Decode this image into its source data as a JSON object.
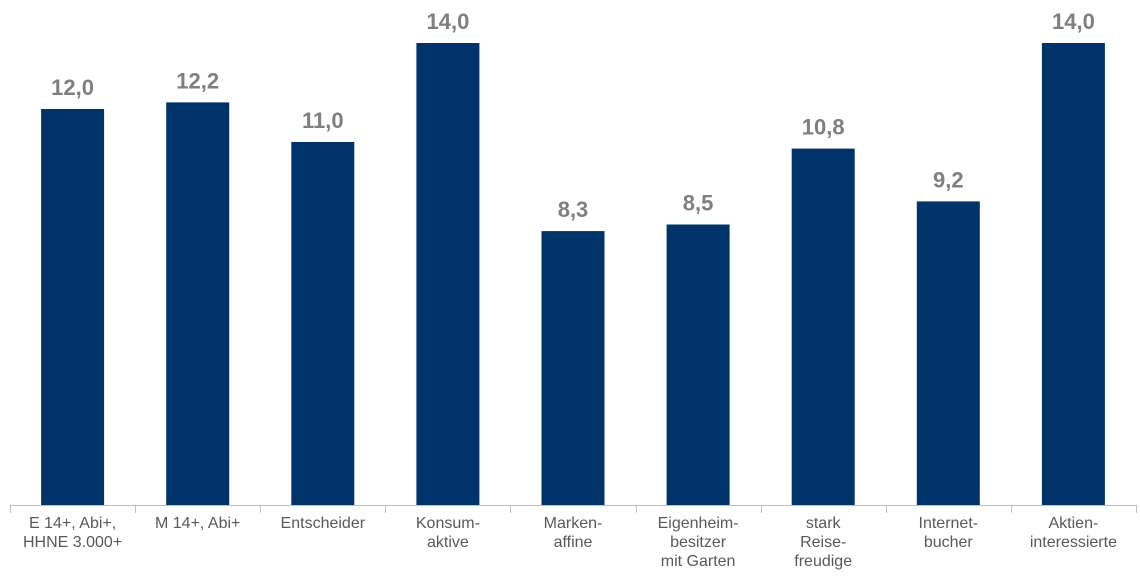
{
  "chart_data": {
    "type": "bar",
    "categories": [
      [
        "E 14+, Abi+,",
        "HHNE 3.000+"
      ],
      [
        "M 14+, Abi+"
      ],
      [
        "Entscheider"
      ],
      [
        "Konsum-",
        "aktive"
      ],
      [
        "Marken-",
        "affine"
      ],
      [
        "Eigenheim-",
        "besitzer",
        "mit Garten"
      ],
      [
        "stark",
        "Reise-",
        "freudige"
      ],
      [
        "Internet-",
        "bucher"
      ],
      [
        "Aktien-",
        "interessierte"
      ]
    ],
    "values": [
      12.0,
      12.2,
      11.0,
      14.0,
      8.3,
      8.5,
      10.8,
      9.2,
      14.0
    ],
    "value_labels": [
      "12,0",
      "12,2",
      "11,0",
      "14,0",
      "8,3",
      "8,5",
      "10,8",
      "9,2",
      "14,0"
    ],
    "ylim": [
      0,
      15.4
    ],
    "grid": false,
    "colors": {
      "bar": "#00336A",
      "value_label": "#7F7F7F",
      "category_label": "#595959",
      "axis": "#BFBFBF"
    }
  }
}
